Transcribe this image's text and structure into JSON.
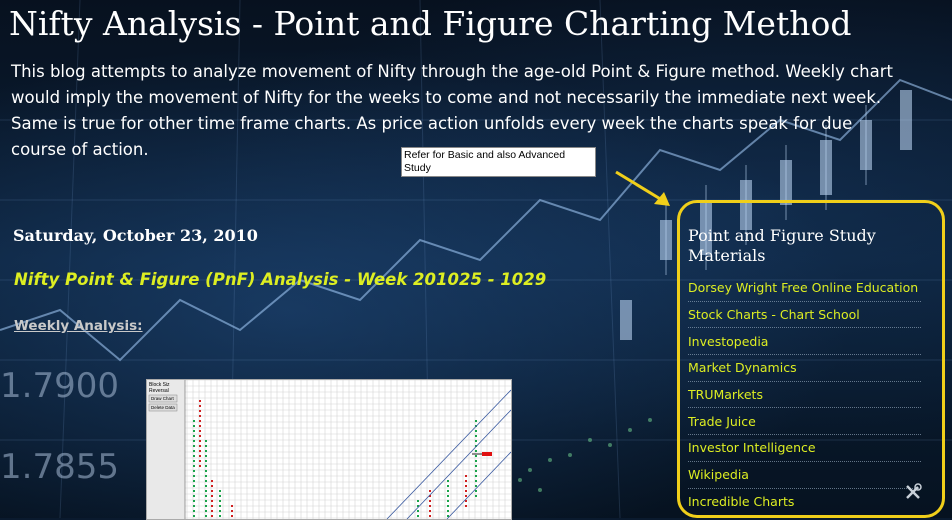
{
  "header": {
    "title": "Nifty Analysis - Point and Figure Charting Method",
    "description": "This blog attempts to analyze movement of Nifty through the age-old Point & Figure method. Weekly chart would imply the movement of Nifty for the weeks to come and not necessarily the immediate next week. Same is true for other time frame charts. As price action unfolds every week the charts speak for due course of action."
  },
  "tooltip": {
    "text": "Refer for Basic and also Advanced Study"
  },
  "background": {
    "numbers": [
      "1.7900",
      "1.7855"
    ]
  },
  "post": {
    "date": "Saturday, October 23, 2010",
    "title": "Nifty Point & Figure (PnF) Analysis - Week 201025 - 1029",
    "weekly_link": "Weekly Analysis:"
  },
  "chart_thumbnail": {
    "labels": {
      "box_size": "Block Siz",
      "reversal": "Reversal",
      "draw_chart": "Draw Chart",
      "delete_data": "Delete Data"
    }
  },
  "sidebar": {
    "title": "Point and Figure Study Materials",
    "links": [
      "Dorsey Wright Free Online Education",
      "Stock Charts - Chart School",
      "Investopedia",
      "Market Dynamics",
      "TRUMarkets",
      "Trade Juice",
      "Investor Intelligence",
      "Wikipedia",
      "Incredible Charts"
    ]
  },
  "colors": {
    "accent_yellow": "#ddee22",
    "box_border": "#f0cf1a",
    "background": "#0a1a2e"
  },
  "icons": {
    "tools": "tools-icon",
    "arrow": "arrow-icon"
  }
}
